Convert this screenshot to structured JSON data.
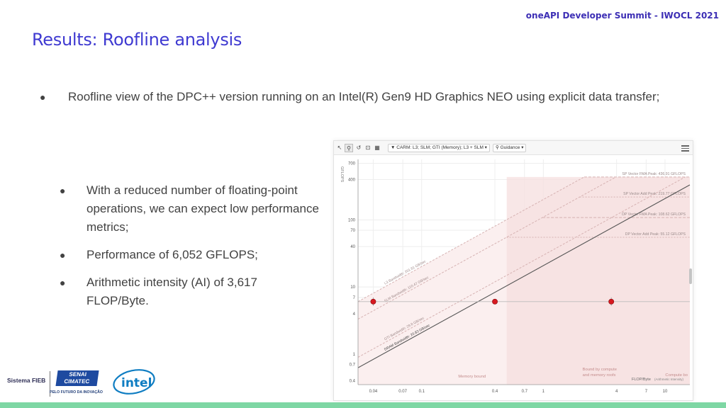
{
  "header": {
    "summit": "oneAPI Developer Summit - IWOCL 2021",
    "title": "Results: Roofline analysis"
  },
  "main_bullet": {
    "text": "Roofline view of the DPC++ version running on an Intel(R) Gen9 HD Graphics NEO using explicit data transfer;"
  },
  "sub_bullets": [
    "With a reduced number of floating-point operations, we can expect low performance metrics;",
    "Performance of 6,052 GFLOPS;",
    "Arithmetic intensity (AI) of 3,617 FLOP/Byte."
  ],
  "roofline_toolbar": {
    "filter_label": "CARM: L3; SLM; GTI (Memory); L3 + SLM",
    "guidance_label": "Guidance"
  },
  "chart_data": {
    "type": "scatter",
    "x_scale": "log",
    "y_scale": "log",
    "xlim": [
      0.03,
      16
    ],
    "ylim": [
      0.35,
      800
    ],
    "ylabel": "GFLOPS",
    "xlabel": "FLOP/Byte",
    "xlabel_note": "(Arithmetic Intensity)",
    "x_ticks": [
      0.04,
      0.07,
      0.1,
      0.4,
      0.7,
      1,
      4,
      7,
      10
    ],
    "y_ticks": [
      0.4,
      0.7,
      1,
      4,
      7,
      10,
      40,
      70,
      100,
      400,
      700
    ],
    "compute_roofs": [
      {
        "label": "SP Vector FMA Peak: 436.91 GFLOPS",
        "value": 436.91
      },
      {
        "label": "SP Vector Add Peak: 219.77 GFLOPS",
        "value": 219.77
      },
      {
        "label": "DP Vector FMA Peak: 108.62 GFLOPS",
        "value": 108.62
      },
      {
        "label": "DP Vector Add Peak: 55.12 GFLOPS",
        "value": 55.12
      }
    ],
    "memory_roofs": [
      {
        "label": "L3 Bandwidth: 201.81 GB/sec",
        "value": 201.81
      },
      {
        "label": "SLM Bandwidth: 110.47 GB/sec",
        "value": 110.47
      },
      {
        "label": "GTI Bandwidth: 29.8 GB/sec",
        "value": 29.8
      },
      {
        "label": "DRAM Bandwidth: 20.83 GB/sec",
        "value": 20.83
      }
    ],
    "points": [
      {
        "x": 0.04,
        "y": 6.052
      },
      {
        "x": 0.4,
        "y": 6.052
      },
      {
        "x": 3.617,
        "y": 6.052
      }
    ],
    "regions": {
      "memory_bound": "Memory bound",
      "bound_by_both": "Bound by compute and memory roofs",
      "compute_bound": "Compute bo"
    },
    "colors": {
      "point": "#d71920",
      "roof_line": "#d6b2b2",
      "region_fill": "#f6dfdf",
      "dram_line": "#555555"
    }
  },
  "logos": {
    "fieb": "Sistema FIEB",
    "senai": "SENAI",
    "cimatec": "CIMATEC",
    "tagline": "PELO FUTURO DA INOVAÇÃO",
    "intel": "intel"
  }
}
